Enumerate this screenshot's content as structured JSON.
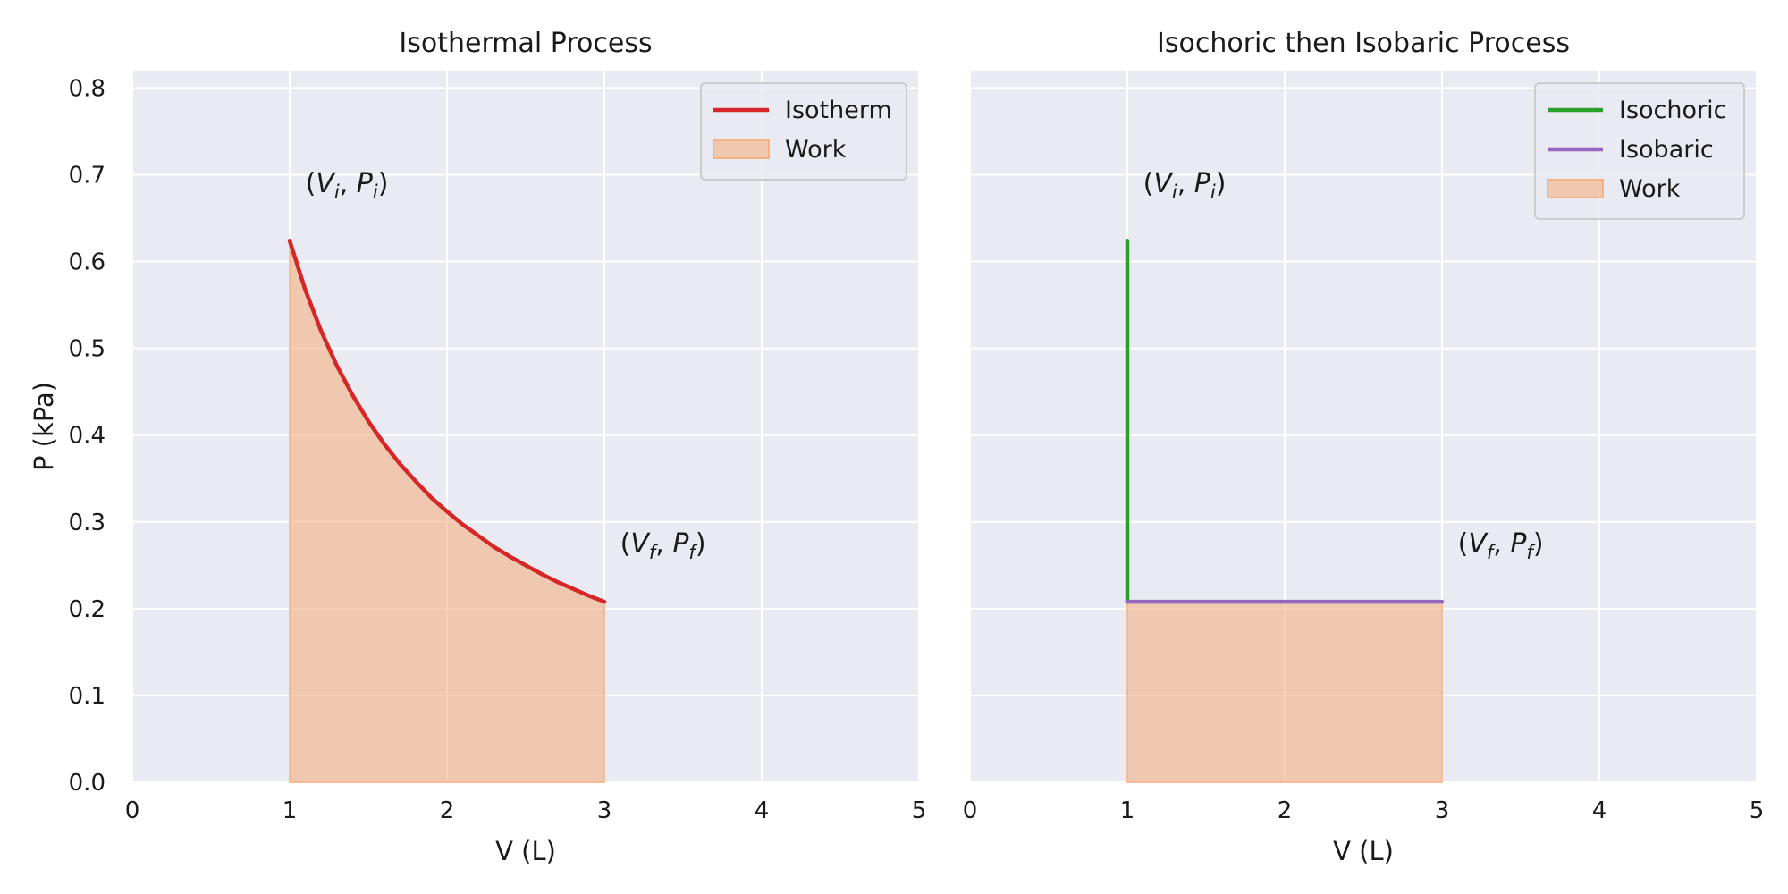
{
  "colors": {
    "axes_background": "#eaeaf2",
    "grid": "#ffffff",
    "isotherm": "#d62728",
    "isochoric": "#2ca02c",
    "isobaric": "#9467bd",
    "work_fill": "#f4b183"
  },
  "chart_data": [
    {
      "type": "line",
      "title": "Isothermal Process",
      "xlabel": "V (L)",
      "ylabel": "P (kPa)",
      "xlim": [
        0,
        5
      ],
      "ylim": [
        0,
        0.82
      ],
      "xticks": [
        0,
        1,
        2,
        3,
        4,
        5
      ],
      "yticks": [
        0.0,
        0.1,
        0.2,
        0.3,
        0.4,
        0.5,
        0.6,
        0.7,
        0.8
      ],
      "grid": true,
      "legend_position": "top-right",
      "series": [
        {
          "name": "Isotherm",
          "kind": "curve",
          "color_key": "isotherm",
          "x": [
            1.0,
            1.1,
            1.2,
            1.3,
            1.4,
            1.5,
            1.6,
            1.7,
            1.8,
            1.9,
            2.0,
            2.1,
            2.2,
            2.3,
            2.4,
            2.5,
            2.6,
            2.7,
            2.8,
            2.9,
            3.0
          ],
          "y": [
            0.624,
            0.567,
            0.52,
            0.48,
            0.446,
            0.416,
            0.39,
            0.367,
            0.347,
            0.328,
            0.312,
            0.297,
            0.284,
            0.271,
            0.26,
            0.25,
            0.24,
            0.231,
            0.223,
            0.215,
            0.208
          ]
        },
        {
          "name": "Work",
          "kind": "fill",
          "color_key": "work_fill",
          "x": [
            1.0,
            1.1,
            1.2,
            1.3,
            1.4,
            1.5,
            1.6,
            1.7,
            1.8,
            1.9,
            2.0,
            2.1,
            2.2,
            2.3,
            2.4,
            2.5,
            2.6,
            2.7,
            2.8,
            2.9,
            3.0
          ],
          "y": [
            0.624,
            0.567,
            0.52,
            0.48,
            0.446,
            0.416,
            0.39,
            0.367,
            0.347,
            0.328,
            0.312,
            0.297,
            0.284,
            0.271,
            0.26,
            0.25,
            0.24,
            0.231,
            0.223,
            0.215,
            0.208
          ]
        }
      ],
      "annotations": [
        {
          "text": "(V_i, P_i)",
          "x": 1.1,
          "y": 0.68
        },
        {
          "text": "(V_f, P_f)",
          "x": 3.1,
          "y": 0.265
        }
      ]
    },
    {
      "type": "line",
      "title": "Isochoric then Isobaric Process",
      "xlabel": "V (L)",
      "ylabel": "",
      "xlim": [
        0,
        5
      ],
      "ylim": [
        0,
        0.82
      ],
      "xticks": [
        0,
        1,
        2,
        3,
        4,
        5
      ],
      "yticks": [
        0.0,
        0.1,
        0.2,
        0.3,
        0.4,
        0.5,
        0.6,
        0.7,
        0.8
      ],
      "show_ytick_labels": false,
      "grid": true,
      "legend_position": "top-right",
      "series": [
        {
          "name": "Isochoric",
          "kind": "curve",
          "color_key": "isochoric",
          "x": [
            1.0,
            1.0
          ],
          "y": [
            0.624,
            0.208
          ]
        },
        {
          "name": "Isobaric",
          "kind": "curve",
          "color_key": "isobaric",
          "x": [
            1.0,
            3.0
          ],
          "y": [
            0.208,
            0.208
          ]
        },
        {
          "name": "Work",
          "kind": "fill",
          "color_key": "work_fill",
          "x": [
            1.0,
            3.0
          ],
          "y": [
            0.208,
            0.208
          ]
        }
      ],
      "annotations": [
        {
          "text": "(V_i, P_i)",
          "x": 1.1,
          "y": 0.68
        },
        {
          "text": "(V_f, P_f)",
          "x": 3.1,
          "y": 0.265
        }
      ]
    }
  ]
}
